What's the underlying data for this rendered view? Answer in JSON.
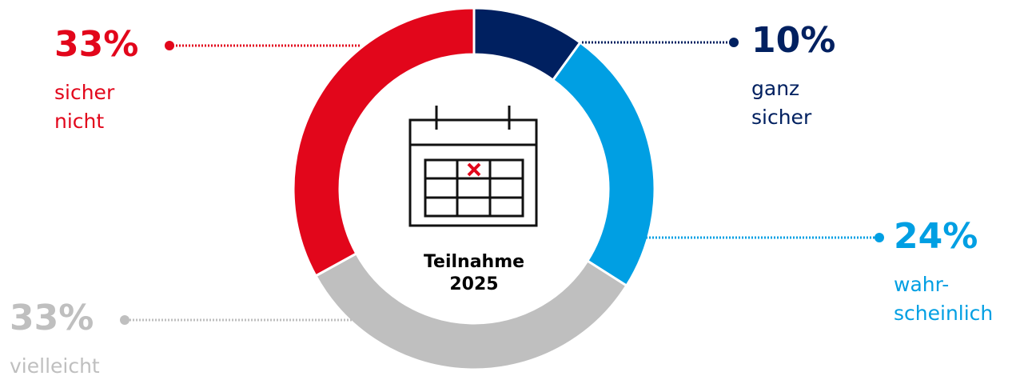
{
  "chart_data": {
    "type": "pie",
    "donut": true,
    "title": [
      "Teilnahme",
      "2025"
    ],
    "categories": [
      [
        "ganz",
        "sicher"
      ],
      [
        "wahr-",
        "scheinlich"
      ],
      [
        "vielleicht"
      ],
      [
        "sicher",
        "nicht"
      ]
    ],
    "values": [
      10,
      24,
      33,
      33
    ],
    "value_labels": [
      "10%",
      "24%",
      "33%",
      "33%"
    ],
    "colors": [
      "#002060",
      "#009fe3",
      "#bfbfbf",
      "#e2061b"
    ]
  }
}
